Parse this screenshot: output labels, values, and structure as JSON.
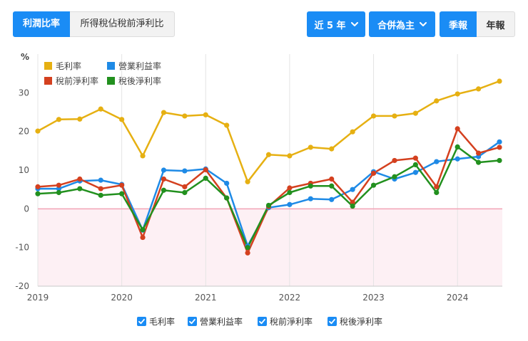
{
  "tabs": [
    {
      "label": "利潤比率",
      "active": true
    },
    {
      "label": "所得稅佔稅前淨利比",
      "active": false
    }
  ],
  "controls": {
    "period": {
      "label": "近 5 年",
      "icon": "chevron-down-icon"
    },
    "consolidation": {
      "label": "合併為主",
      "icon": "chevron-down-icon"
    },
    "report_types": [
      {
        "label": "季報",
        "active": true
      },
      {
        "label": "年報",
        "active": false
      }
    ]
  },
  "toggles": [
    {
      "label": "毛利率",
      "checked": true
    },
    {
      "label": "營業利益率",
      "checked": true
    },
    {
      "label": "稅前淨利率",
      "checked": true
    },
    {
      "label": "稅後淨利率",
      "checked": true
    }
  ],
  "colors": {
    "accent": "#1a8cf5",
    "negative_area": "#fdf0f4",
    "zero_line": "#f2a3b5",
    "grid": "#e4e4e4"
  },
  "chart_data": {
    "type": "line",
    "ylabel": "%",
    "ylim": [
      -20,
      40
    ],
    "yticks": [
      -20,
      -10,
      0,
      10,
      20,
      30
    ],
    "xticks": [
      2019,
      2020,
      2021,
      2022,
      2023,
      2024
    ],
    "grid": "vertical",
    "legend": "top-left",
    "x": [
      2019,
      2019.25,
      2019.5,
      2019.75,
      2020,
      2020.25,
      2020.5,
      2020.75,
      2021,
      2021.25,
      2021.5,
      2021.75,
      2022,
      2022.25,
      2022.5,
      2022.75,
      2023,
      2023.25,
      2023.5,
      2023.75,
      2024,
      2024.25,
      2024.5
    ],
    "series": [
      {
        "name": "毛利率",
        "color": "#e6b012",
        "values": [
          20.1,
          23.1,
          23.2,
          25.8,
          23.1,
          13.7,
          24.9,
          24.0,
          24.3,
          21.6,
          7.0,
          14.0,
          13.7,
          15.9,
          15.5,
          19.9,
          24.0,
          24.0,
          24.7,
          27.9,
          29.7,
          31.0,
          33.0
        ]
      },
      {
        "name": "營業利益率",
        "color": "#1e8ae6",
        "values": [
          5.2,
          5.2,
          7.2,
          7.4,
          6.3,
          -5.5,
          10.0,
          9.8,
          10.3,
          6.6,
          -9.6,
          0.3,
          1.1,
          2.6,
          2.4,
          5.0,
          9.6,
          7.7,
          9.4,
          12.2,
          12.9,
          13.5,
          17.3
        ]
      },
      {
        "name": "稅前淨利率",
        "color": "#d4401f",
        "values": [
          5.7,
          6.1,
          7.7,
          5.2,
          6.1,
          -7.4,
          7.7,
          5.7,
          10.1,
          2.8,
          -11.4,
          0.6,
          5.4,
          6.6,
          7.7,
          1.7,
          9.2,
          12.5,
          13.1,
          5.7,
          20.7,
          14.4,
          15.9
        ]
      },
      {
        "name": "稅後淨利率",
        "color": "#22901e",
        "values": [
          3.9,
          4.2,
          5.2,
          3.5,
          3.9,
          -5.4,
          4.8,
          4.2,
          7.9,
          2.8,
          -10.0,
          0.9,
          4.2,
          5.9,
          5.9,
          0.7,
          6.1,
          8.3,
          11.4,
          4.2,
          16.0,
          12.0,
          12.5
        ]
      }
    ]
  }
}
